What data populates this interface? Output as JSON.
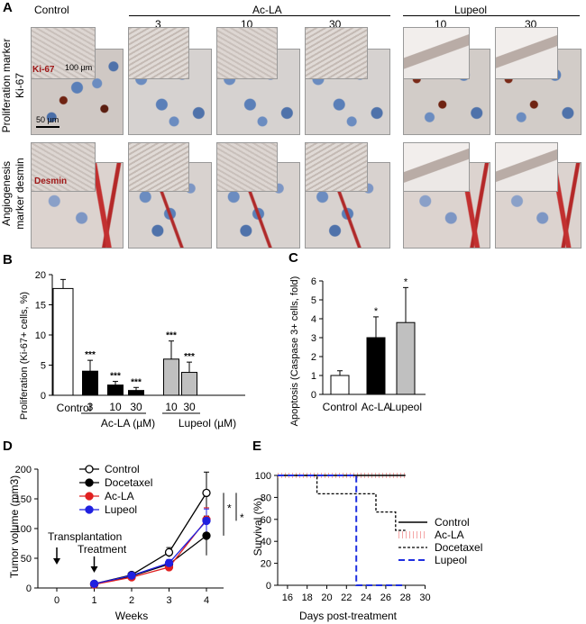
{
  "panelA": {
    "label": "A",
    "headers": {
      "control": "Control",
      "acla": "Ac-LA",
      "lupeol": "Lupeol",
      "acla_doses": [
        "3",
        "10",
        "30"
      ],
      "lupeol_doses": [
        "10",
        "30"
      ]
    },
    "row1_label": "Proliferation marker Ki-67",
    "row2_label": "Angiogenesis marker desmin",
    "ki67_tag": "Ki-67",
    "desmin_tag": "Desmin",
    "scale_100": "100 µm",
    "scale_50": "50 µm"
  },
  "chart_data": [
    {
      "panel": "B",
      "type": "bar",
      "categories": [
        "Control",
        "3",
        "10",
        "30",
        "10",
        "30"
      ],
      "groups": [
        "Control",
        "Ac-LA (µM)",
        "Lupeol (µM)"
      ],
      "values": [
        17.7,
        4.0,
        1.7,
        0.8,
        6.0,
        3.8
      ],
      "errors": [
        1.5,
        1.8,
        0.6,
        0.5,
        3.0,
        1.7
      ],
      "significance": [
        "",
        "***",
        "***",
        "***",
        "***",
        "***"
      ],
      "ylabel": "Proliferation (Ki-67+ cells, %)",
      "ylim": [
        0,
        20
      ],
      "yticks": [
        "0",
        "5",
        "10",
        "15",
        "20"
      ],
      "colors": {
        "control": "#ffffff",
        "acla": "#000000",
        "lupeol": "#c0c0c0"
      }
    },
    {
      "panel": "C",
      "type": "bar",
      "categories": [
        "Control",
        "Ac-LA",
        "Lupeol"
      ],
      "values": [
        1.0,
        3.0,
        3.8
      ],
      "errors": [
        0.25,
        1.1,
        1.85
      ],
      "significance": [
        "",
        "*",
        "*"
      ],
      "ylabel": "Apoptosis (Caspase 3+ cells, fold)",
      "ylim": [
        0,
        6
      ],
      "yticks": [
        "0",
        "1",
        "2",
        "3",
        "4",
        "5",
        "6"
      ]
    },
    {
      "panel": "D",
      "type": "line",
      "xlabel": "Weeks",
      "ylabel": "Tumor volume (mm3)",
      "x": [
        1,
        2,
        3,
        4
      ],
      "xticks": [
        "0",
        "1",
        "2",
        "3",
        "4"
      ],
      "yticks": [
        "0",
        "50",
        "100",
        "150",
        "200"
      ],
      "ylim": [
        0,
        200
      ],
      "series": [
        {
          "name": "Control",
          "values": [
            7,
            22,
            60,
            160
          ],
          "errors": [
            2,
            4,
            8,
            35
          ],
          "color": "#000000",
          "fill": "#ffffff"
        },
        {
          "name": "Docetaxel",
          "values": [
            6,
            20,
            40,
            88
          ],
          "errors": [
            2,
            3,
            6,
            33
          ],
          "color": "#000000",
          "fill": "#000000"
        },
        {
          "name": "Ac-LA",
          "values": [
            6,
            18,
            35,
            115
          ],
          "errors": [
            2,
            3,
            6,
            20
          ],
          "color": "#e02020",
          "fill": "#e02020"
        },
        {
          "name": "Lupeol",
          "values": [
            7,
            21,
            42,
            113
          ],
          "errors": [
            2,
            3,
            6,
            20
          ],
          "color": "#2020e0",
          "fill": "#2020e0"
        }
      ],
      "annotations": [
        "Transplantation",
        "Treatment",
        "*",
        "*"
      ]
    },
    {
      "panel": "E",
      "type": "line",
      "xlabel": "Days post-treatment",
      "ylabel": "Survival (%)",
      "xticks": [
        "16",
        "18",
        "20",
        "22",
        "24",
        "26",
        "28",
        "30"
      ],
      "yticks": [
        "0",
        "20",
        "40",
        "60",
        "80",
        "100"
      ],
      "xlim": [
        15,
        30
      ],
      "ylim": [
        0,
        100
      ],
      "series": [
        {
          "name": "Control",
          "x": [
            15,
            28
          ],
          "values": [
            100,
            100
          ]
        },
        {
          "name": "Ac-LA",
          "x": [
            15,
            28
          ],
          "values": [
            100,
            100
          ]
        },
        {
          "name": "Docetaxel",
          "x": [
            15,
            19,
            19,
            25,
            25,
            27,
            27,
            28
          ],
          "values": [
            100,
            100,
            83.3,
            83.3,
            66.7,
            66.7,
            50,
            50
          ]
        },
        {
          "name": "Lupeol",
          "x": [
            15,
            23,
            23,
            28
          ],
          "values": [
            100,
            100,
            0,
            0
          ]
        }
      ]
    }
  ],
  "panelB": {
    "label": "B",
    "xgroup_control": "Control",
    "xgroup_acla": "Ac-LA (µM)",
    "xgroup_lupeol": "Lupeol (µM)"
  },
  "panelC": {
    "label": "C"
  },
  "panelD": {
    "label": "D"
  },
  "panelE": {
    "label": "E"
  }
}
